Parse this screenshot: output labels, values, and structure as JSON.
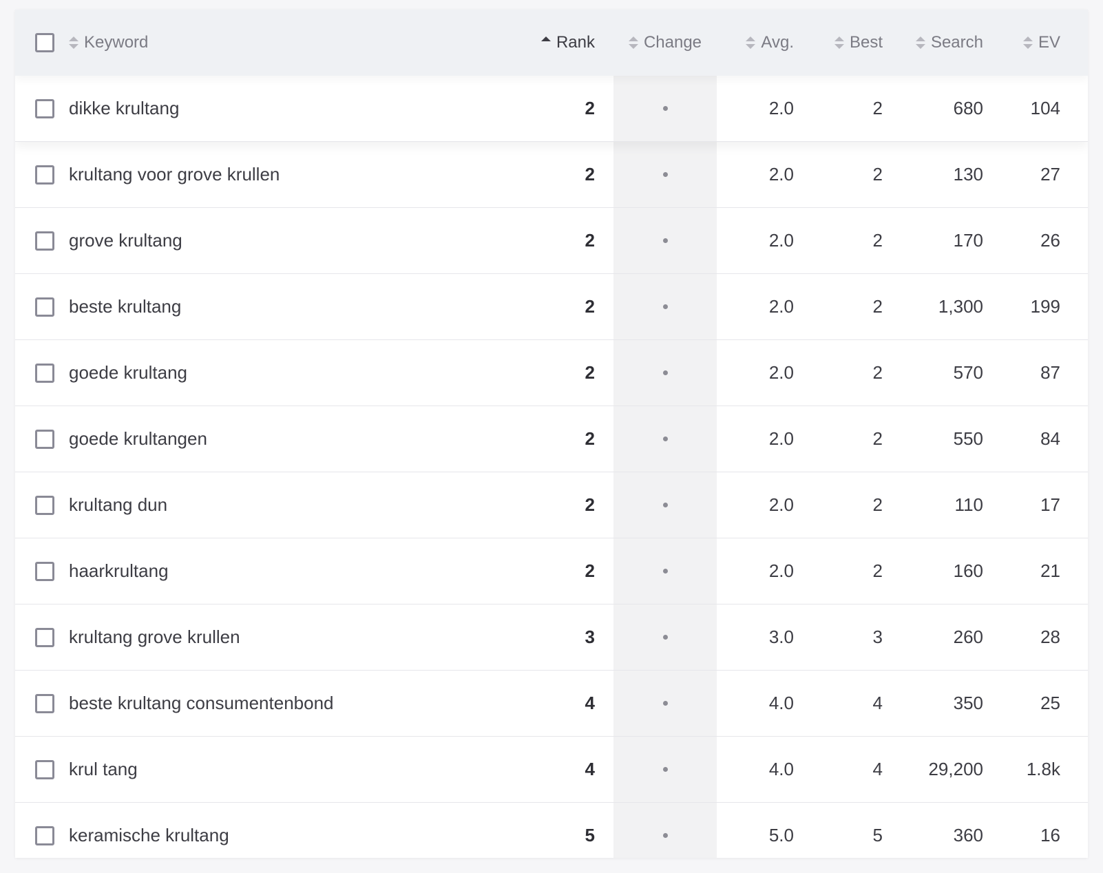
{
  "table": {
    "columns": {
      "keyword": "Keyword",
      "rank": "Rank",
      "change": "Change",
      "avg": "Avg.",
      "best": "Best",
      "search": "Search",
      "ev": "EV"
    },
    "sort": {
      "column": "rank",
      "direction": "asc"
    },
    "rows": [
      {
        "keyword": "dikke krultang",
        "rank": "2",
        "change": "•",
        "avg": "2.0",
        "best": "2",
        "search": "680",
        "ev": "104"
      },
      {
        "keyword": "krultang voor grove krullen",
        "rank": "2",
        "change": "•",
        "avg": "2.0",
        "best": "2",
        "search": "130",
        "ev": "27"
      },
      {
        "keyword": "grove krultang",
        "rank": "2",
        "change": "•",
        "avg": "2.0",
        "best": "2",
        "search": "170",
        "ev": "26"
      },
      {
        "keyword": "beste krultang",
        "rank": "2",
        "change": "•",
        "avg": "2.0",
        "best": "2",
        "search": "1,300",
        "ev": "199"
      },
      {
        "keyword": "goede krultang",
        "rank": "2",
        "change": "•",
        "avg": "2.0",
        "best": "2",
        "search": "570",
        "ev": "87"
      },
      {
        "keyword": "goede krultangen",
        "rank": "2",
        "change": "•",
        "avg": "2.0",
        "best": "2",
        "search": "550",
        "ev": "84"
      },
      {
        "keyword": "krultang dun",
        "rank": "2",
        "change": "•",
        "avg": "2.0",
        "best": "2",
        "search": "110",
        "ev": "17"
      },
      {
        "keyword": "haarkrultang",
        "rank": "2",
        "change": "•",
        "avg": "2.0",
        "best": "2",
        "search": "160",
        "ev": "21"
      },
      {
        "keyword": "krultang grove krullen",
        "rank": "3",
        "change": "•",
        "avg": "3.0",
        "best": "3",
        "search": "260",
        "ev": "28"
      },
      {
        "keyword": "beste krultang consumentenbond",
        "rank": "4",
        "change": "•",
        "avg": "4.0",
        "best": "4",
        "search": "350",
        "ev": "25"
      },
      {
        "keyword": "krul tang",
        "rank": "4",
        "change": "•",
        "avg": "4.0",
        "best": "4",
        "search": "29,200",
        "ev": "1.8k"
      },
      {
        "keyword": "keramische krultang",
        "rank": "5",
        "change": "•",
        "avg": "5.0",
        "best": "5",
        "search": "360",
        "ev": "16"
      }
    ]
  }
}
